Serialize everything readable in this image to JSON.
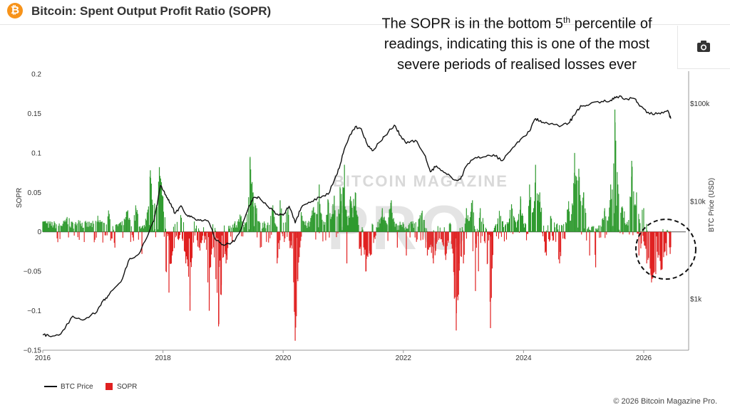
{
  "header": {
    "logo_symbol": "₿",
    "title": "Bitcoin: Spent Output Profit Ratio (SOPR)"
  },
  "annotation": {
    "line1_pre": "The SOPR is in the bottom 5",
    "line1_sup": "th",
    "line1_post": " percentile of",
    "line2": "readings, indicating this is one of the most",
    "line3": "severe periods of realised losses ever"
  },
  "toolbar": {
    "camera_icon": "camera-icon"
  },
  "footer": {
    "copyright": "© 2026 Bitcoin Magazine Pro."
  },
  "watermark": {
    "line1": "BITCOIN MAGAZINE",
    "line2": "PRO"
  },
  "colors": {
    "price": "#111111",
    "sopr_pos": "#2e9a2e",
    "sopr_neg": "#e02020",
    "accent": "#f7931a"
  },
  "chart_data": {
    "type": "line",
    "xlabel": "",
    "ylabel": "SOPR",
    "y2label": "BTC Price (USD)",
    "x_ticks": [
      "2016",
      "2018",
      "2020",
      "2022",
      "2024",
      "2026"
    ],
    "y_ticks": [
      "0.2",
      "0.15",
      "0.1",
      "0.05",
      "0",
      "−0.05",
      "−0.1",
      "−0.15"
    ],
    "y2_ticks": [
      "$100k",
      "$10k",
      "$1k"
    ],
    "ylim": [
      -0.15,
      0.2
    ],
    "xlim": [
      2016.0,
      2026.7
    ],
    "y2_scale": "log",
    "y2lim": [
      300,
      200000
    ],
    "legend": {
      "placement": "bottom-left",
      "items": [
        "BTC Price",
        "SOPR"
      ]
    },
    "series": [
      {
        "name": "BTC Price",
        "kind": "line",
        "x": [
          2016.0,
          2016.1,
          2016.3,
          2016.5,
          2016.7,
          2016.9,
          2017.0,
          2017.1,
          2017.3,
          2017.45,
          2017.6,
          2017.75,
          2017.85,
          2017.96,
          2018.05,
          2018.12,
          2018.2,
          2018.3,
          2018.4,
          2018.5,
          2018.6,
          2018.75,
          2018.88,
          2019.0,
          2019.1,
          2019.2,
          2019.3,
          2019.42,
          2019.5,
          2019.6,
          2019.75,
          2019.9,
          2020.0,
          2020.1,
          2020.2,
          2020.3,
          2020.45,
          2020.6,
          2020.75,
          2020.9,
          2021.0,
          2021.1,
          2021.2,
          2021.3,
          2021.4,
          2021.5,
          2021.6,
          2021.7,
          2021.85,
          2021.95,
          2022.05,
          2022.2,
          2022.35,
          2022.45,
          2022.55,
          2022.7,
          2022.85,
          2022.95,
          2023.05,
          2023.2,
          2023.35,
          2023.5,
          2023.65,
          2023.8,
          2023.95,
          2024.1,
          2024.2,
          2024.3,
          2024.45,
          2024.6,
          2024.75,
          2024.85,
          2024.95,
          2025.1,
          2025.3,
          2025.45,
          2025.55,
          2025.7,
          2025.85,
          2025.95,
          2026.1,
          2026.25,
          2026.4,
          2026.45
        ],
        "y": [
          430,
          420,
          440,
          670,
          620,
          740,
          960,
          1100,
          1500,
          2600,
          2900,
          4500,
          6300,
          14500,
          11500,
          9500,
          7500,
          9000,
          7200,
          6800,
          6400,
          6300,
          4000,
          3600,
          3700,
          4000,
          5200,
          8500,
          10800,
          11000,
          8800,
          7400,
          7200,
          8900,
          6000,
          8600,
          9700,
          11000,
          11800,
          19000,
          31000,
          46000,
          58000,
          55000,
          38000,
          33000,
          40000,
          47000,
          60000,
          47000,
          39000,
          42000,
          30000,
          20000,
          23000,
          19500,
          16500,
          16800,
          23000,
          28000,
          28500,
          30000,
          26000,
          34000,
          43000,
          52000,
          70000,
          64000,
          62000,
          58000,
          63000,
          76000,
          95000,
          98000,
          105000,
          108000,
          118000,
          112000,
          112000,
          94000,
          78000,
          80000,
          85000,
          70000
        ]
      },
      {
        "name": "SOPR",
        "kind": "bar",
        "spikes": [
          {
            "x": 2016.0,
            "v": 0.013
          },
          {
            "x": 2016.4,
            "v": 0.014
          },
          {
            "x": 2016.6,
            "v": 0.012
          },
          {
            "x": 2016.92,
            "v": 0.015
          },
          {
            "x": 2017.1,
            "v": 0.02
          },
          {
            "x": 2017.2,
            "v": -0.02
          },
          {
            "x": 2017.4,
            "v": 0.026
          },
          {
            "x": 2017.55,
            "v": 0.03
          },
          {
            "x": 2017.65,
            "v": -0.028
          },
          {
            "x": 2017.75,
            "v": 0.02
          },
          {
            "x": 2017.79,
            "v": 0.078
          },
          {
            "x": 2017.86,
            "v": 0.036
          },
          {
            "x": 2017.94,
            "v": 0.082
          },
          {
            "x": 2018.0,
            "v": 0.045
          },
          {
            "x": 2018.05,
            "v": -0.05
          },
          {
            "x": 2018.1,
            "v": -0.077
          },
          {
            "x": 2018.15,
            "v": -0.03
          },
          {
            "x": 2018.3,
            "v": 0.018
          },
          {
            "x": 2018.38,
            "v": -0.04
          },
          {
            "x": 2018.45,
            "v": -0.1
          },
          {
            "x": 2018.6,
            "v": -0.02
          },
          {
            "x": 2018.77,
            "v": -0.1
          },
          {
            "x": 2018.88,
            "v": -0.06
          },
          {
            "x": 2018.93,
            "v": -0.117
          },
          {
            "x": 2018.97,
            "v": -0.08
          },
          {
            "x": 2019.05,
            "v": -0.04
          },
          {
            "x": 2019.3,
            "v": 0.02
          },
          {
            "x": 2019.45,
            "v": 0.095
          },
          {
            "x": 2019.5,
            "v": 0.05
          },
          {
            "x": 2019.56,
            "v": 0.03
          },
          {
            "x": 2019.62,
            "v": -0.02
          },
          {
            "x": 2019.82,
            "v": 0.03
          },
          {
            "x": 2019.9,
            "v": -0.04
          },
          {
            "x": 2019.95,
            "v": 0.04
          },
          {
            "x": 2020.08,
            "v": 0.03
          },
          {
            "x": 2020.12,
            "v": -0.02
          },
          {
            "x": 2020.2,
            "v": -0.138
          },
          {
            "x": 2020.24,
            "v": -0.06
          },
          {
            "x": 2020.3,
            "v": 0.025
          },
          {
            "x": 2020.5,
            "v": 0.03
          },
          {
            "x": 2020.6,
            "v": 0.06
          },
          {
            "x": 2020.75,
            "v": 0.04
          },
          {
            "x": 2020.85,
            "v": 0.045
          },
          {
            "x": 2020.95,
            "v": 0.055
          },
          {
            "x": 2021.02,
            "v": 0.085
          },
          {
            "x": 2021.06,
            "v": -0.04
          },
          {
            "x": 2021.12,
            "v": 0.045
          },
          {
            "x": 2021.2,
            "v": 0.05
          },
          {
            "x": 2021.3,
            "v": -0.03
          },
          {
            "x": 2021.38,
            "v": -0.05
          },
          {
            "x": 2021.45,
            "v": -0.03
          },
          {
            "x": 2021.65,
            "v": 0.03
          },
          {
            "x": 2021.8,
            "v": 0.04
          },
          {
            "x": 2021.9,
            "v": -0.02
          },
          {
            "x": 2022.05,
            "v": -0.03
          },
          {
            "x": 2022.3,
            "v": 0.02
          },
          {
            "x": 2022.4,
            "v": -0.03
          },
          {
            "x": 2022.5,
            "v": -0.04
          },
          {
            "x": 2022.7,
            "v": -0.03
          },
          {
            "x": 2022.85,
            "v": -0.055
          },
          {
            "x": 2022.88,
            "v": -0.125
          },
          {
            "x": 2022.93,
            "v": -0.04
          },
          {
            "x": 2023.0,
            "v": -0.04
          },
          {
            "x": 2023.05,
            "v": 0.03
          },
          {
            "x": 2023.15,
            "v": 0.04
          },
          {
            "x": 2023.2,
            "v": -0.075
          },
          {
            "x": 2023.25,
            "v": -0.05
          },
          {
            "x": 2023.28,
            "v": 0.03
          },
          {
            "x": 2023.4,
            "v": -0.04
          },
          {
            "x": 2023.45,
            "v": -0.122
          },
          {
            "x": 2023.6,
            "v": 0.02
          },
          {
            "x": 2023.8,
            "v": 0.035
          },
          {
            "x": 2023.95,
            "v": 0.045
          },
          {
            "x": 2024.1,
            "v": 0.06
          },
          {
            "x": 2024.2,
            "v": 0.085
          },
          {
            "x": 2024.27,
            "v": 0.05
          },
          {
            "x": 2024.38,
            "v": -0.03
          },
          {
            "x": 2024.45,
            "v": 0.02
          },
          {
            "x": 2024.6,
            "v": -0.04
          },
          {
            "x": 2024.75,
            "v": 0.03
          },
          {
            "x": 2024.85,
            "v": 0.1
          },
          {
            "x": 2024.92,
            "v": 0.08
          },
          {
            "x": 2025.0,
            "v": 0.05
          },
          {
            "x": 2025.1,
            "v": -0.03
          },
          {
            "x": 2025.2,
            "v": -0.045
          },
          {
            "x": 2025.35,
            "v": 0.03
          },
          {
            "x": 2025.45,
            "v": 0.06
          },
          {
            "x": 2025.52,
            "v": 0.155
          },
          {
            "x": 2025.57,
            "v": 0.06
          },
          {
            "x": 2025.65,
            "v": 0.03
          },
          {
            "x": 2025.8,
            "v": 0.09
          },
          {
            "x": 2025.88,
            "v": 0.05
          },
          {
            "x": 2025.92,
            "v": -0.03
          },
          {
            "x": 2026.0,
            "v": 0.03
          },
          {
            "x": 2026.05,
            "v": -0.04
          },
          {
            "x": 2026.12,
            "v": -0.055
          },
          {
            "x": 2026.15,
            "v": -0.04
          },
          {
            "x": 2026.2,
            "v": -0.05
          },
          {
            "x": 2026.27,
            "v": -0.03
          },
          {
            "x": 2026.3,
            "v": -0.048
          },
          {
            "x": 2026.38,
            "v": -0.03
          },
          {
            "x": 2026.44,
            "v": -0.028
          }
        ]
      }
    ]
  }
}
